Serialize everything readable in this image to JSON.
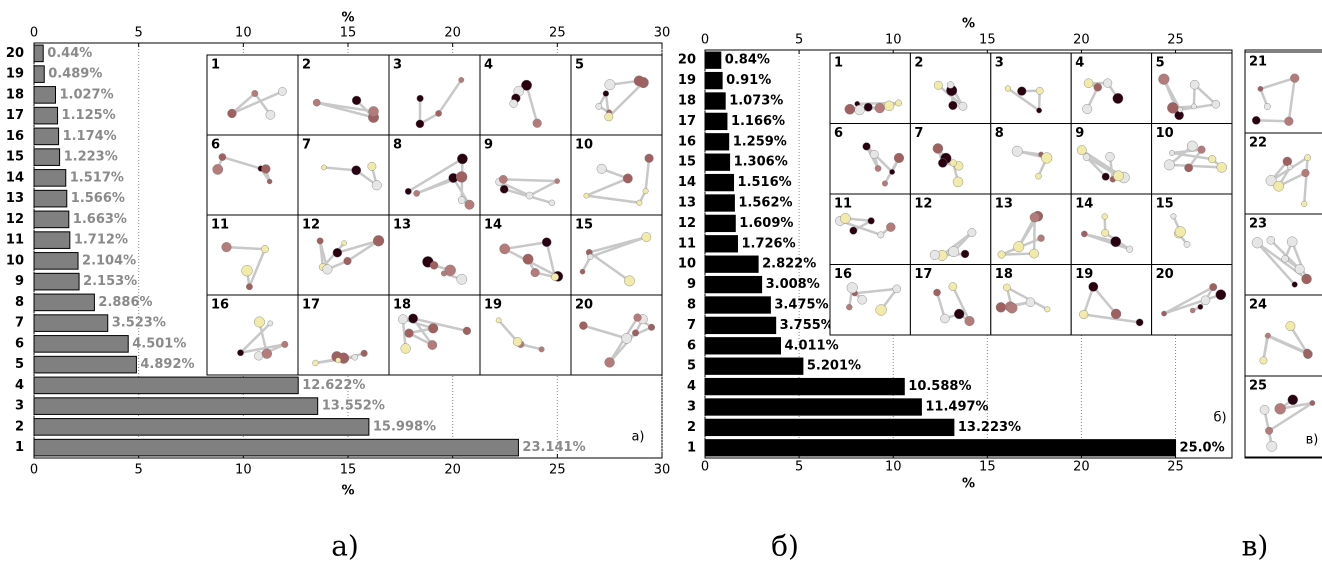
{
  "chart_data": [
    {
      "type": "barh",
      "xlabel": "%",
      "caption": "а)",
      "panel_label": "а)",
      "categories": [
        "1",
        "2",
        "3",
        "4",
        "5",
        "6",
        "7",
        "8",
        "9",
        "10",
        "11",
        "12",
        "13",
        "14",
        "15",
        "16",
        "17",
        "18",
        "19",
        "20"
      ],
      "values": [
        23.141,
        15.998,
        13.552,
        12.622,
        4.892,
        4.501,
        3.523,
        2.886,
        2.153,
        2.104,
        1.712,
        1.663,
        1.566,
        1.517,
        1.223,
        1.174,
        1.125,
        1.027,
        0.489,
        0.44
      ],
      "value_labels": [
        "23.141%",
        "15.998%",
        "13.552%",
        "12.622%",
        "4.892%",
        "4.501%",
        "3.523%",
        "2.886%",
        "2.153%",
        "2.104%",
        "1.712%",
        "1.663%",
        "1.566%",
        "1.517%",
        "1.223%",
        "1.174%",
        "1.125%",
        "1.027%",
        "0.489%",
        "0.44%"
      ],
      "color": "#808080",
      "label_color": "#8a8a8a",
      "xlim": [
        0,
        30
      ],
      "xticks": [
        0,
        5,
        10,
        15,
        20,
        25,
        30
      ],
      "grid": true,
      "inset_labels": [
        1,
        2,
        3,
        4,
        5,
        6,
        7,
        8,
        9,
        10,
        11,
        12,
        13,
        14,
        15,
        16,
        17,
        18,
        19,
        20
      ]
    },
    {
      "type": "barh",
      "xlabel": "%",
      "caption": "б)",
      "panel_label": "б)",
      "categories": [
        "1",
        "2",
        "3",
        "4",
        "5",
        "6",
        "7",
        "8",
        "9",
        "10",
        "11",
        "12",
        "13",
        "14",
        "15",
        "16",
        "17",
        "18",
        "19",
        "20"
      ],
      "values": [
        25.0,
        13.223,
        11.497,
        10.588,
        5.201,
        4.011,
        3.755,
        3.475,
        3.008,
        2.822,
        1.726,
        1.609,
        1.562,
        1.516,
        1.306,
        1.259,
        1.166,
        1.073,
        0.91,
        0.84
      ],
      "value_labels": [
        "25.0%",
        "13.223%",
        "11.497%",
        "10.588%",
        "5.201%",
        "4.011%",
        "3.755%",
        "3.475%",
        "3.008%",
        "2.822%",
        "1.726%",
        "1.609%",
        "1.562%",
        "1.516%",
        "1.306%",
        "1.259%",
        "1.166%",
        "1.073%",
        "0.91%",
        "0.84%"
      ],
      "color": "#000000",
      "label_color": "#000000",
      "xlim": [
        0,
        28
      ],
      "xticks": [
        0,
        5,
        10,
        15,
        20,
        25
      ],
      "grid": true,
      "inset_labels": [
        1,
        2,
        3,
        4,
        5,
        6,
        7,
        8,
        9,
        10,
        11,
        12,
        13,
        14,
        15,
        16,
        17,
        18,
        19,
        20
      ]
    }
  ],
  "panel_v": {
    "caption": "в)",
    "panel_label": "в)",
    "inset_labels": [
      21,
      22,
      23,
      24,
      25
    ]
  }
}
